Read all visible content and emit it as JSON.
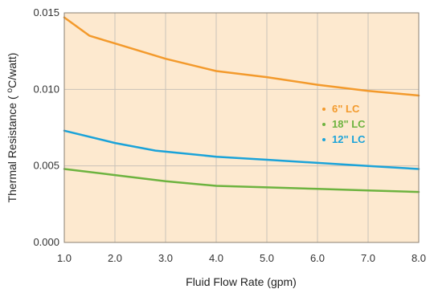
{
  "chart_data": {
    "type": "line",
    "title": "",
    "xlabel": "Fluid Flow Rate (gpm)",
    "ylabel_prefix": "Thermal Resistance ( ",
    "ylabel_sup": "o",
    "ylabel_suffix": "C/watt)",
    "xlim": [
      1.0,
      8.0
    ],
    "ylim": [
      0.0,
      0.015
    ],
    "x_ticks": [
      1.0,
      2.0,
      3.0,
      4.0,
      5.0,
      6.0,
      7.0,
      8.0
    ],
    "x_tick_labels": [
      "1.0",
      "2.0",
      "3.0",
      "4.0",
      "5.0",
      "6.0",
      "7.0",
      "8.0"
    ],
    "y_ticks": [
      0.0,
      0.005,
      0.01,
      0.015
    ],
    "y_tick_labels": [
      "0.000",
      "0.005",
      "0.010",
      "0.015"
    ],
    "grid": true,
    "plot_background": "#fde9cf",
    "legend_position": "center-right",
    "series": [
      {
        "name": "6\" LC",
        "color": "#f39a2c",
        "x": [
          1.0,
          1.5,
          2.0,
          3.0,
          4.0,
          5.0,
          6.0,
          7.0,
          8.0
        ],
        "y": [
          0.0147,
          0.0135,
          0.013,
          0.012,
          0.0112,
          0.0108,
          0.0103,
          0.0099,
          0.0096
        ]
      },
      {
        "name": "18\" LC",
        "color": "#6db33f",
        "x": [
          1.0,
          2.0,
          3.0,
          4.0,
          5.0,
          6.0,
          7.0,
          8.0
        ],
        "y": [
          0.0048,
          0.0044,
          0.004,
          0.0037,
          0.0036,
          0.0035,
          0.0034,
          0.0033
        ]
      },
      {
        "name": "12\" LC",
        "color": "#1ba3d9",
        "x": [
          1.0,
          2.0,
          2.8,
          3.1,
          4.0,
          5.0,
          6.0,
          7.0,
          8.0
        ],
        "y": [
          0.0073,
          0.0065,
          0.006,
          0.0059,
          0.0056,
          0.0054,
          0.0052,
          0.005,
          0.0048
        ]
      }
    ]
  }
}
